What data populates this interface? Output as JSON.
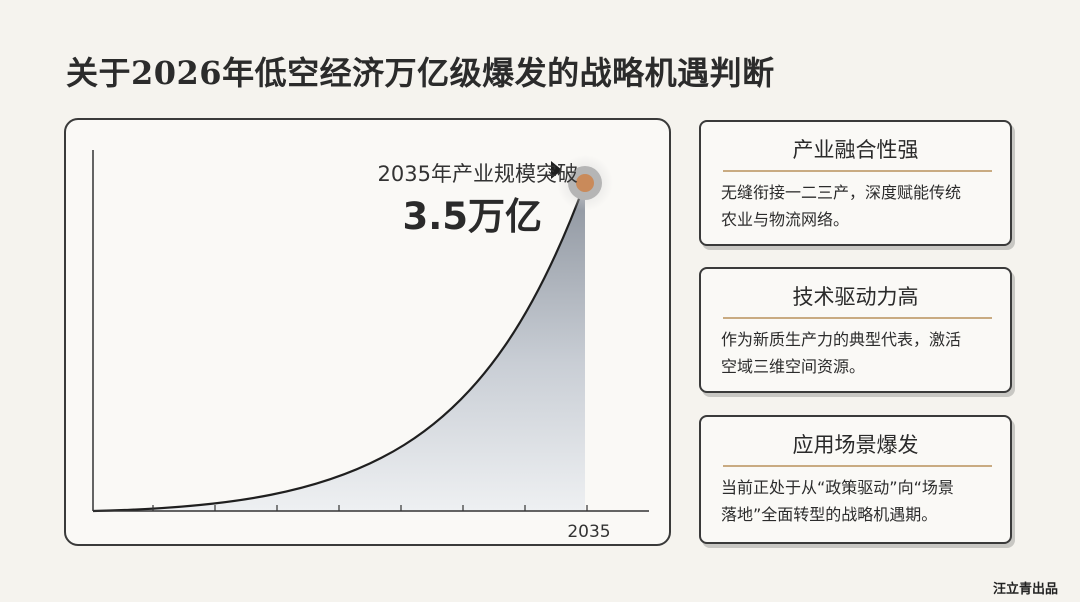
{
  "title": "关于2026年低空经济万亿级爆发的战略机遇判断",
  "chart_data": {
    "type": "area",
    "annotation": {
      "label": "2035年产业规模突破",
      "value": "3.5万亿"
    },
    "x_tick_label": "2035",
    "series": [
      {
        "x": [
          "",
          "2035"
        ],
        "values": [
          0,
          3.5
        ]
      }
    ],
    "accent_color": "#c98a5a"
  },
  "cards": [
    {
      "title": "产业融合性强",
      "lines": [
        "无缝衔接一二三产，深度赋能传统",
        "农业与物流网络。"
      ]
    },
    {
      "title": "技术驱动力高",
      "lines": [
        "作为新质生产力的典型代表，激活",
        "空域三维空间资源。"
      ]
    },
    {
      "title": "应用场景爆发",
      "lines": [
        "当前正处于从“政策驱动”向“场景",
        "落地”全面转型的战略机遇期。"
      ]
    }
  ],
  "credit": "汪立青出品"
}
